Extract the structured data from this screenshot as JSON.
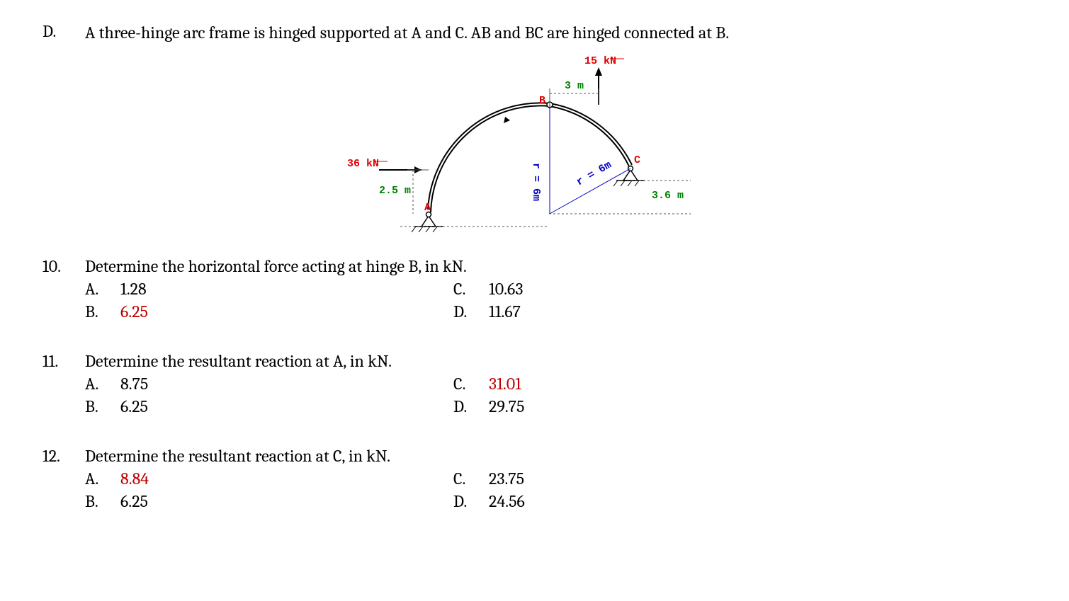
{
  "section": {
    "letter": "D.",
    "text": "A three-hinge arc frame is hinged supported at A and C. AB and BC are hinged connected at B."
  },
  "diagram": {
    "type": "structural-diagram",
    "radius_label": "r = 6m",
    "nodes": {
      "A": {
        "label": "A",
        "color": "#e00000"
      },
      "B": {
        "label": "B",
        "color": "#e00000"
      },
      "C": {
        "label": "C",
        "color": "#e00000"
      }
    },
    "loads": {
      "horizontal": {
        "value": "36 kN",
        "color": "#e00000",
        "offset_label": "2.5 m"
      },
      "vertical": {
        "value": "15 kN",
        "color": "#e00000",
        "offset_label": "3 m"
      }
    },
    "dims": {
      "right_overhang": "3.6 m"
    },
    "colors": {
      "load_text": "#e00000",
      "dim_text": "#008000",
      "radius_text": "#0000c0",
      "arc": "#000000",
      "dim_line": "#555555"
    }
  },
  "questions": [
    {
      "num": "10.",
      "text": "Determine the horizontal force acting at hinge B, in kN.",
      "choices": {
        "A": "1.28",
        "B": "6.25",
        "C": "10.63",
        "D": "11.67"
      },
      "correct": "B"
    },
    {
      "num": "11.",
      "text": "Determine the resultant reaction at A, in kN.",
      "choices": {
        "A": "8.75",
        "B": "6.25",
        "C": "31.01",
        "D": "29.75"
      },
      "correct": "C"
    },
    {
      "num": "12.",
      "text": "Determine the resultant reaction at C, in kN.",
      "choices": {
        "A": "8.84",
        "B": "6.25",
        "C": "23.75",
        "D": "24.56"
      },
      "correct": "A"
    }
  ]
}
